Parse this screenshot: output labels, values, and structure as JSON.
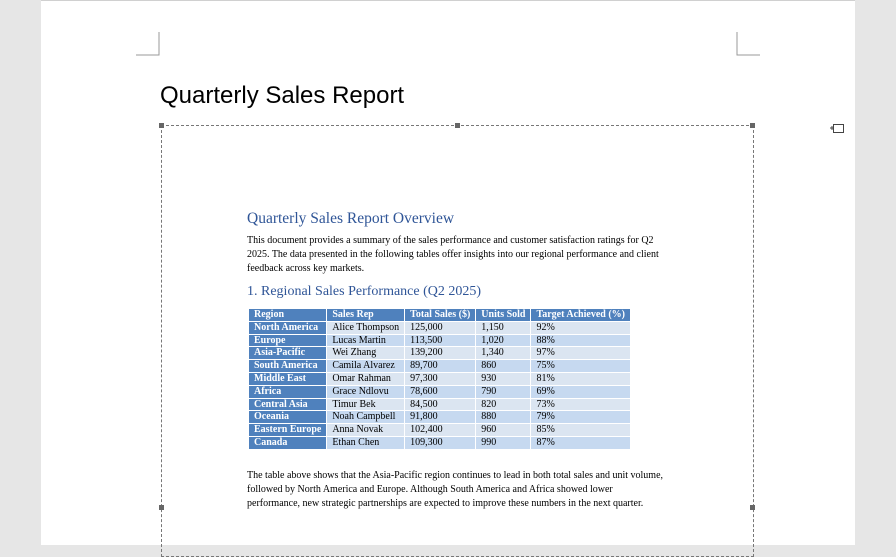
{
  "document": {
    "title": "Quarterly Sales Report"
  },
  "embed": {
    "title": "Quarterly Sales Report Overview",
    "intro": "This document provides a summary of the sales performance and customer satisfaction ratings for Q2 2025. The data presented in the following tables offer insights into our regional performance and client feedback across key markets.",
    "section": "1. Regional Sales Performance (Q2 2025)",
    "table": {
      "headers": [
        "Region",
        "Sales Rep",
        "Total Sales ($)",
        "Units Sold",
        "Target Achieved (%)"
      ],
      "rows": [
        [
          "North America",
          "Alice Thompson",
          "125,000",
          "1,150",
          "92%"
        ],
        [
          "Europe",
          "Lucas Martin",
          "113,500",
          "1,020",
          "88%"
        ],
        [
          "Asia-Pacific",
          "Wei Zhang",
          "139,200",
          "1,340",
          "97%"
        ],
        [
          "South America",
          "Camila Alvarez",
          "89,700",
          "860",
          "75%"
        ],
        [
          "Middle East",
          "Omar Rahman",
          "97,300",
          "930",
          "81%"
        ],
        [
          "Africa",
          "Grace Ndlovu",
          "78,600",
          "790",
          "69%"
        ],
        [
          "Central Asia",
          "Timur Bek",
          "84,500",
          "820",
          "73%"
        ],
        [
          "Oceania",
          "Noah Campbell",
          "91,800",
          "880",
          "79%"
        ],
        [
          "Eastern Europe",
          "Anna Novak",
          "102,400",
          "960",
          "85%"
        ],
        [
          "Canada",
          "Ethan Chen",
          "109,300",
          "990",
          "87%"
        ]
      ]
    },
    "closing": "The table above shows that the Asia-Pacific region continues to lead in both total sales and unit volume, followed by North America and Europe. Although South America and Africa showed lower performance, new strategic partnerships are expected to improve these numbers in the next quarter."
  }
}
